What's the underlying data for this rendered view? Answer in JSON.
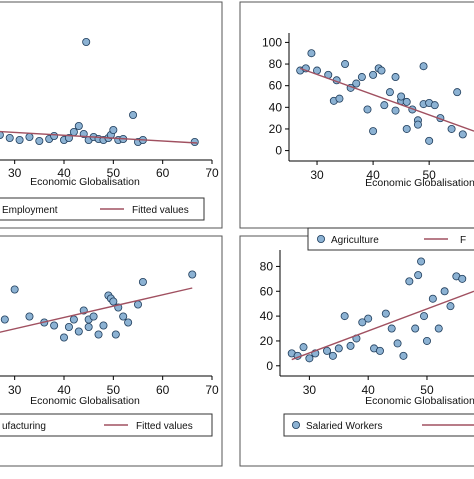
{
  "chart_data": [
    {
      "type": "scatter",
      "panel": "top-left",
      "xlabel": "Economic Globalisation",
      "ylabel": "",
      "xlim": [
        25,
        70
      ],
      "ylim": [
        -15,
        120
      ],
      "xticks": [
        "30",
        "40",
        "50",
        "60",
        "70"
      ],
      "yticks": [],
      "grid": false,
      "legend_position": "bottom",
      "series": [
        {
          "name": "Employment",
          "marker": "circle",
          "x": [
            27,
            29,
            31,
            33,
            35,
            37,
            38,
            40,
            41,
            42,
            43,
            44,
            44.5,
            45,
            46,
            47,
            48,
            49,
            49.5,
            50,
            51,
            52,
            54,
            55,
            56,
            66.5
          ],
          "y": [
            5,
            2,
            0,
            3,
            -1,
            1,
            4,
            0,
            2,
            8,
            14,
            6,
            98,
            0,
            3,
            1,
            0,
            2,
            5,
            10,
            0,
            1,
            25,
            -2,
            0,
            -2
          ]
        },
        {
          "name": "Fitted values",
          "line": true,
          "x": [
            25,
            67
          ],
          "y": [
            9,
            -3
          ]
        }
      ]
    },
    {
      "type": "scatter",
      "panel": "top-right",
      "xlabel": "Economic Globalisation",
      "ylabel": "",
      "xlim": [
        25,
        58
      ],
      "ylim": [
        -5,
        105
      ],
      "xticks": [
        "30",
        "40",
        "50"
      ],
      "yticks": [
        "0",
        "20",
        "40",
        "60",
        "80",
        "100"
      ],
      "grid": false,
      "legend_position": "bottom",
      "series": [
        {
          "name": "Agriculture",
          "marker": "circle",
          "x": [
            27,
            28,
            29,
            30,
            32,
            33,
            33.5,
            34,
            35,
            36,
            37,
            38,
            39,
            40,
            40,
            41,
            41.5,
            42,
            43,
            44,
            44,
            45,
            45,
            46,
            46,
            47,
            48,
            48,
            49,
            49,
            50,
            50,
            51,
            52,
            54,
            55,
            56
          ],
          "y": [
            74,
            76,
            90,
            74,
            70,
            46,
            65,
            48,
            80,
            58,
            62,
            68,
            38,
            70,
            18,
            76,
            74,
            42,
            54,
            37,
            68,
            46,
            50,
            20,
            45,
            38,
            28,
            24,
            43,
            78,
            44,
            9,
            42,
            30,
            20,
            54,
            15
          ]
        },
        {
          "name": "Fitted values",
          "line": true,
          "x": [
            27,
            58
          ],
          "y": [
            76,
            18
          ]
        }
      ]
    },
    {
      "type": "scatter",
      "panel": "bottom-left",
      "xlabel": "Economic Globalisation",
      "ylabel": "",
      "xlim": [
        25,
        70
      ],
      "ylim": [
        5,
        85
      ],
      "xticks": [
        "30",
        "40",
        "50",
        "60",
        "70"
      ],
      "yticks": [],
      "grid": false,
      "legend_position": "bottom",
      "series": [
        {
          "name": "Manufacturing",
          "marker": "circle",
          "x": [
            26,
            28,
            30,
            33,
            36,
            38,
            40,
            41,
            42,
            43,
            44,
            45,
            45,
            46,
            47,
            48,
            49,
            49.5,
            50,
            50.5,
            51,
            52,
            53,
            55,
            56,
            66
          ],
          "y": [
            48,
            40,
            60,
            42,
            38,
            36,
            28,
            35,
            40,
            32,
            46,
            35,
            40,
            42,
            30,
            36,
            56,
            54,
            52,
            30,
            48,
            42,
            38,
            50,
            65,
            70
          ]
        },
        {
          "name": "Fitted values",
          "line": true,
          "x": [
            25,
            66
          ],
          "y": [
            30,
            61
          ]
        }
      ]
    },
    {
      "type": "scatter",
      "panel": "bottom-right",
      "xlabel": "Economic Globalisation",
      "ylabel": "",
      "xlim": [
        25,
        58
      ],
      "ylim": [
        -5,
        90
      ],
      "xticks": [
        "30",
        "40",
        "50"
      ],
      "yticks": [
        "0",
        "20",
        "40",
        "60",
        "80"
      ],
      "grid": false,
      "legend_position": "bottom",
      "series": [
        {
          "name": "Salaried Workers",
          "marker": "circle",
          "x": [
            27,
            28,
            29,
            30,
            31,
            33,
            34,
            35,
            36,
            37,
            38,
            39,
            40,
            41,
            42,
            43,
            44,
            45,
            46,
            47,
            48,
            48.5,
            49,
            49.5,
            50,
            51,
            52,
            53,
            54,
            55,
            56
          ],
          "y": [
            10,
            8,
            15,
            6,
            10,
            12,
            8,
            14,
            40,
            16,
            22,
            35,
            38,
            14,
            12,
            42,
            30,
            18,
            8,
            68,
            30,
            73,
            84,
            40,
            20,
            54,
            30,
            60,
            48,
            72,
            70
          ]
        },
        {
          "name": "Fitted values",
          "line": true,
          "x": [
            27,
            58
          ],
          "y": [
            5,
            60
          ]
        }
      ]
    }
  ],
  "legends": {
    "tl": [
      "Employment",
      "Fitted values"
    ],
    "tr": [
      "Agriculture",
      "F"
    ],
    "bl": [
      "ufacturing",
      "Fitted values"
    ],
    "br": [
      "Salaried Workers",
      ""
    ]
  },
  "colors": {
    "marker_fill": "#8cb2d3",
    "marker_stroke": "#1f3d5c",
    "fit_line": "#a05060",
    "frame": "#222222",
    "panel_border": "#555555",
    "axis_line": "#000000"
  }
}
